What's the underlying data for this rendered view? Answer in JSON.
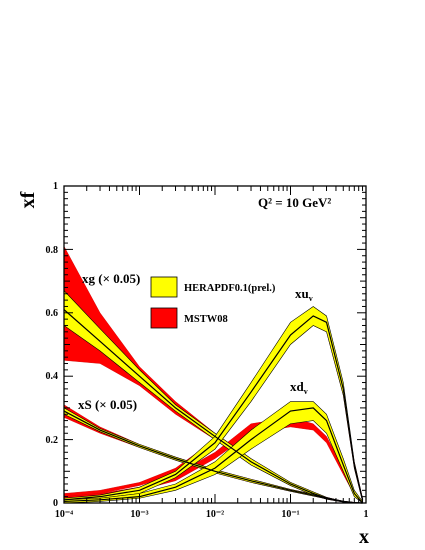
{
  "chart_data": {
    "type": "line",
    "title": "Q² = 10 GeV²",
    "xlabel": "x",
    "ylabel": "xf",
    "xscale": "log",
    "xlim": [
      0.0001,
      1
    ],
    "ylim": [
      0,
      1
    ],
    "x_tick_labels": [
      "10⁻⁴",
      "10⁻³",
      "10⁻²",
      "10⁻¹",
      "1"
    ],
    "y_tick_labels": [
      "0",
      "0.2",
      "0.4",
      "0.6",
      "0.8",
      "1"
    ],
    "grid": false,
    "legend_position": "center-left",
    "legend": [
      {
        "label": "HERAPDF0.1(prel.)",
        "color": "#ffff00"
      },
      {
        "label": "MSTW08",
        "color": "#ff0000"
      }
    ],
    "annotations": {
      "xg": "xg (× 0.05)",
      "xS": "xS (× 0.05)",
      "xuv": "xu",
      "xuv_sub": "v",
      "xdv": "xd",
      "xdv_sub": "v"
    },
    "x": [
      0.0001,
      0.0003,
      0.001,
      0.003,
      0.01,
      0.03,
      0.1,
      0.2,
      0.3,
      0.5,
      0.7,
      0.9
    ],
    "series": [
      {
        "name": "xg (× 0.05) HERAPDF0.1(prel.)",
        "central": [
          0.61,
          0.51,
          0.4,
          0.3,
          0.21,
          0.13,
          0.06,
          0.03,
          0.015,
          0.004,
          0.001,
          0.0
        ],
        "lower": [
          0.56,
          0.48,
          0.38,
          0.29,
          0.2,
          0.12,
          0.055,
          0.025,
          0.012,
          0.003,
          0.0,
          0.0
        ],
        "upper": [
          0.67,
          0.55,
          0.42,
          0.31,
          0.22,
          0.14,
          0.065,
          0.035,
          0.018,
          0.005,
          0.002,
          0.0
        ]
      },
      {
        "name": "xg (× 0.05) MSTW08",
        "central": [
          0.63,
          0.52,
          0.4,
          0.3,
          0.21,
          0.13,
          0.06,
          0.03,
          0.015,
          0.004,
          0.001,
          0.0
        ],
        "lower": [
          0.45,
          0.44,
          0.37,
          0.28,
          0.2,
          0.12,
          0.055,
          0.025,
          0.012,
          0.003,
          0.0,
          0.0
        ],
        "upper": [
          0.81,
          0.6,
          0.43,
          0.32,
          0.22,
          0.14,
          0.065,
          0.035,
          0.018,
          0.005,
          0.002,
          0.0
        ]
      },
      {
        "name": "xS (× 0.05) HERAPDF0.1(prel.)",
        "central": [
          0.29,
          0.23,
          0.18,
          0.14,
          0.1,
          0.07,
          0.04,
          0.025,
          0.015,
          0.005,
          0.001,
          0.0
        ],
        "lower": [
          0.28,
          0.225,
          0.175,
          0.135,
          0.095,
          0.065,
          0.037,
          0.022,
          0.013,
          0.004,
          0.0,
          0.0
        ],
        "upper": [
          0.3,
          0.235,
          0.185,
          0.145,
          0.105,
          0.075,
          0.043,
          0.028,
          0.017,
          0.006,
          0.002,
          0.0
        ]
      },
      {
        "name": "xS (× 0.05) MSTW08",
        "central": [
          0.29,
          0.23,
          0.18,
          0.14,
          0.1,
          0.07,
          0.04,
          0.025,
          0.015,
          0.005,
          0.001,
          0.0
        ],
        "lower": [
          0.27,
          0.22,
          0.175,
          0.135,
          0.095,
          0.065,
          0.037,
          0.022,
          0.013,
          0.004,
          0.0,
          0.0
        ],
        "upper": [
          0.31,
          0.24,
          0.185,
          0.145,
          0.105,
          0.075,
          0.043,
          0.028,
          0.017,
          0.006,
          0.002,
          0.0
        ]
      },
      {
        "name": "xu_v HERAPDF0.1(prel.)",
        "central": [
          0.01,
          0.02,
          0.04,
          0.09,
          0.19,
          0.35,
          0.53,
          0.59,
          0.57,
          0.36,
          0.12,
          0.01
        ],
        "lower": [
          0.005,
          0.015,
          0.03,
          0.08,
          0.17,
          0.32,
          0.5,
          0.56,
          0.54,
          0.34,
          0.11,
          0.005
        ],
        "upper": [
          0.015,
          0.025,
          0.05,
          0.1,
          0.21,
          0.38,
          0.57,
          0.62,
          0.59,
          0.38,
          0.13,
          0.015
        ]
      },
      {
        "name": "xu_v MSTW08",
        "central": [
          0.025,
          0.035,
          0.06,
          0.1,
          0.19,
          0.33,
          0.52,
          0.57,
          0.55,
          0.35,
          0.12,
          0.01
        ],
        "lower": [
          0.02,
          0.03,
          0.055,
          0.09,
          0.18,
          0.32,
          0.51,
          0.56,
          0.54,
          0.34,
          0.11,
          0.005
        ],
        "upper": [
          0.03,
          0.04,
          0.065,
          0.11,
          0.2,
          0.34,
          0.53,
          0.58,
          0.56,
          0.36,
          0.13,
          0.015
        ]
      },
      {
        "name": "xd_v HERAPDF0.1(prel.)",
        "central": [
          0.005,
          0.01,
          0.02,
          0.05,
          0.11,
          0.2,
          0.29,
          0.3,
          0.26,
          0.12,
          0.03,
          0.0
        ],
        "lower": [
          0.0,
          0.005,
          0.015,
          0.04,
          0.09,
          0.17,
          0.25,
          0.26,
          0.22,
          0.1,
          0.02,
          0.0
        ],
        "upper": [
          0.01,
          0.015,
          0.03,
          0.06,
          0.13,
          0.23,
          0.32,
          0.32,
          0.28,
          0.14,
          0.04,
          0.005
        ]
      },
      {
        "name": "xd_v MSTW08",
        "central": [
          0.015,
          0.025,
          0.045,
          0.08,
          0.15,
          0.23,
          0.25,
          0.24,
          0.2,
          0.1,
          0.03,
          0.0
        ],
        "lower": [
          0.01,
          0.02,
          0.04,
          0.07,
          0.14,
          0.22,
          0.24,
          0.23,
          0.19,
          0.09,
          0.025,
          0.0
        ],
        "upper": [
          0.02,
          0.03,
          0.05,
          0.09,
          0.16,
          0.25,
          0.27,
          0.25,
          0.21,
          0.11,
          0.035,
          0.005
        ]
      }
    ],
    "colors": {
      "HERAPDF0.1(prel.)": "#ffff00",
      "MSTW08": "#ff0000",
      "line": "#000000"
    }
  }
}
